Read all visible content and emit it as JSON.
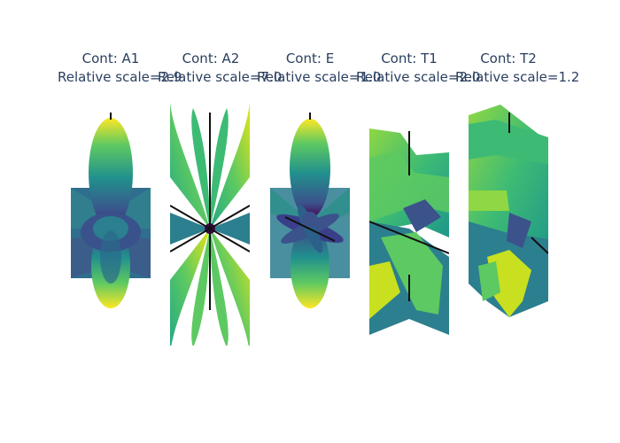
{
  "colors": {
    "title_text": "#2a3f5f",
    "axis_line": "#111111",
    "colorscale": [
      "#440154",
      "#3b528b",
      "#21908d",
      "#5dc962",
      "#fde725"
    ]
  },
  "panels": [
    {
      "title": "Cont: A1",
      "subtitle": "Relative scale=2.9"
    },
    {
      "title": "Cont: A2",
      "subtitle": "Relative scale=7.0"
    },
    {
      "title": "Cont: E",
      "subtitle": "Relative scale=1.0"
    },
    {
      "title": "Cont: T1",
      "subtitle": "Relative scale=2.0"
    },
    {
      "title": "Cont: T2",
      "subtitle": "Relative scale=1.2"
    }
  ]
}
